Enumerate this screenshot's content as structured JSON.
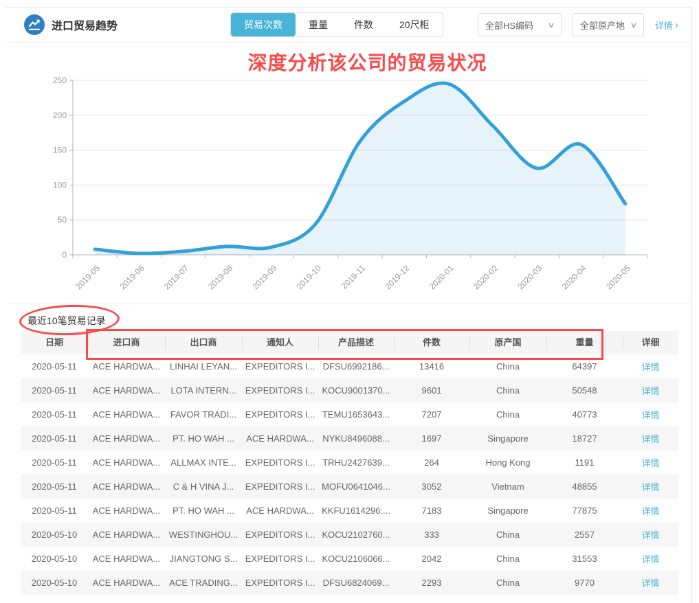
{
  "colors": {
    "accent": "#47B4D8",
    "icon_blue": "#2E80C0",
    "annotation_red": "#F94B4B",
    "line": "#33A0D8",
    "fill": "rgba(51,160,216,0.12)"
  },
  "header": {
    "title": "进口贸易趋势",
    "tabs": [
      {
        "label": "贸易次数",
        "active": true
      },
      {
        "label": "重量",
        "active": false
      },
      {
        "label": "件数",
        "active": false
      },
      {
        "label": "20尺柜",
        "active": false
      }
    ],
    "filters": [
      {
        "label": "全部HS编码"
      },
      {
        "label": "全部原产地"
      }
    ],
    "detail_link": "详情"
  },
  "annotation": {
    "title": "深度分析该公司的贸易状况"
  },
  "chart_data": {
    "type": "area",
    "title": "",
    "xlabel": "",
    "ylabel": "",
    "x": [
      "2019-05",
      "2019-06",
      "2019-07",
      "2019-08",
      "2019-09",
      "2019-10",
      "2019-11",
      "2019-12",
      "2020-01",
      "2020-02",
      "2020-03",
      "2020-04",
      "2020-05"
    ],
    "series": [
      {
        "name": "贸易次数",
        "values": [
          8,
          2,
          5,
          12,
          11,
          45,
          163,
          220,
          245,
          185,
          124,
          158,
          73
        ]
      }
    ],
    "ylim": [
      0,
      250
    ],
    "yticks": [
      0,
      50,
      100,
      150,
      200,
      250
    ],
    "grid": true,
    "legend_position": "none",
    "line_color": "#33A0D8",
    "fill_color": "rgba(51,160,216,0.12)"
  },
  "records": {
    "section_title": "最近10笔贸易记录",
    "columns": [
      "日期",
      "进口商",
      "出口商",
      "通知人",
      "产品描述",
      "件数",
      "原产国",
      "重量",
      "详细"
    ],
    "detail_label": "详情",
    "rows": [
      [
        "2020-05-11",
        "ACE HARDWA...",
        "LINHAI LEYAN...",
        "EXPEDITORS I...",
        "DFSU6992186...",
        "13416",
        "China",
        "64397"
      ],
      [
        "2020-05-11",
        "ACE HARDWA...",
        "LOTA INTERN...",
        "EXPEDITORS I...",
        "KOCU9001370...",
        "9601",
        "China",
        "50548"
      ],
      [
        "2020-05-11",
        "ACE HARDWA...",
        "FAVOR TRADI...",
        "EXPEDITORS I...",
        "TEMU1653643...",
        "7207",
        "China",
        "40773"
      ],
      [
        "2020-05-11",
        "ACE HARDWA...",
        "PT. HO WAH ...",
        "ACE HARDWA...",
        "NYKU8496088...",
        "1697",
        "Singapore",
        "18727"
      ],
      [
        "2020-05-11",
        "ACE HARDWA...",
        "ALLMAX INTE...",
        "EXPEDITORS I...",
        "TRHU2427639...",
        "264",
        "Hong Kong",
        "1191"
      ],
      [
        "2020-05-11",
        "ACE HARDWA...",
        "C & H VINA J...",
        "EXPEDITORS I...",
        "MOFU0641046...",
        "3052",
        "Vietnam",
        "48855"
      ],
      [
        "2020-05-11",
        "ACE HARDWA...",
        "PT. HO WAH ...",
        "ACE HARDWA...",
        "KKFU1614296:...",
        "7183",
        "Singapore",
        "77875"
      ],
      [
        "2020-05-10",
        "ACE HARDWA...",
        "WESTINGHOU...",
        "EXPEDITORS I...",
        "KOCU2102760...",
        "333",
        "China",
        "2557"
      ],
      [
        "2020-05-10",
        "ACE HARDWA...",
        "JIANGTONG S...",
        "EXPEDITORS I...",
        "KOCU2106066...",
        "2042",
        "China",
        "31553"
      ],
      [
        "2020-05-10",
        "ACE HARDWA...",
        "ACE TRADING...",
        "EXPEDITORS I...",
        "DFSU6824069...",
        "2293",
        "China",
        "9770"
      ]
    ]
  }
}
